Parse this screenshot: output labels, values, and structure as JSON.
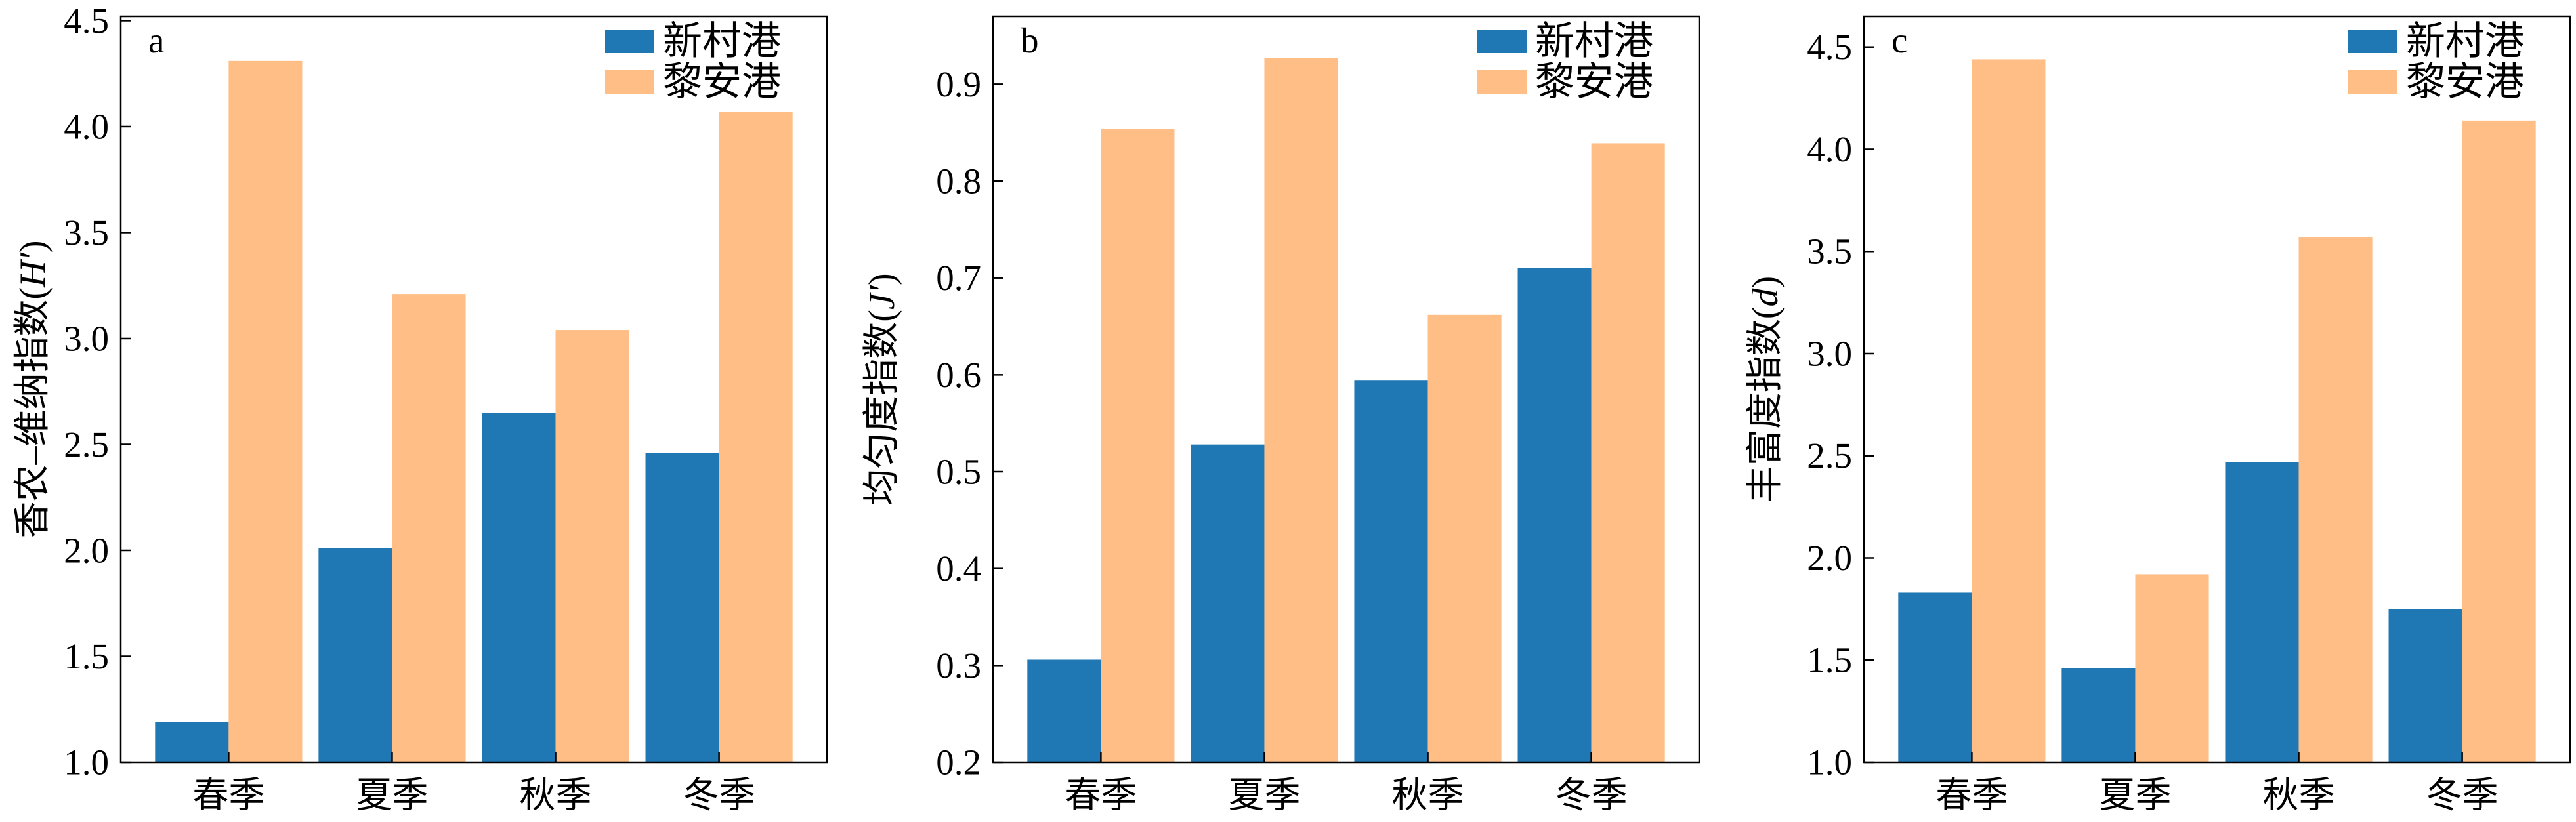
{
  "chart_data": [
    {
      "type": "bar",
      "panel_label": "a",
      "categories": [
        "春季",
        "夏季",
        "秋季",
        "冬季"
      ],
      "series": [
        {
          "name": "新村港",
          "color": "#1f77b4",
          "values": [
            1.19,
            2.01,
            2.65,
            2.46
          ]
        },
        {
          "name": "黎安港",
          "color": "#ffbe86",
          "values": [
            4.31,
            3.21,
            3.04,
            4.07
          ]
        }
      ],
      "ylabel": {
        "text": "香农–维纳指数(",
        "symbol": "H′",
        "suffix": ")"
      },
      "ylim": [
        1.0,
        4.52
      ],
      "yticks": [
        "1.0",
        "1.5",
        "2.0",
        "2.5",
        "3.0",
        "3.5",
        "4.0",
        "4.5"
      ],
      "legend": "top-right",
      "grid": false
    },
    {
      "type": "bar",
      "panel_label": "b",
      "categories": [
        "春季",
        "夏季",
        "秋季",
        "冬季"
      ],
      "series": [
        {
          "name": "新村港",
          "color": "#1f77b4",
          "values": [
            0.306,
            0.528,
            0.594,
            0.71
          ]
        },
        {
          "name": "黎安港",
          "color": "#ffbe86",
          "values": [
            0.854,
            0.927,
            0.662,
            0.839
          ]
        }
      ],
      "ylabel": {
        "text": "均匀度指数(",
        "symbol": "J′",
        "suffix": ")"
      },
      "ylim": [
        0.2,
        0.97
      ],
      "yticks": [
        "0.2",
        "0.3",
        "0.4",
        "0.5",
        "0.6",
        "0.7",
        "0.8",
        "0.9"
      ],
      "legend": "top-right",
      "grid": false
    },
    {
      "type": "bar",
      "panel_label": "c",
      "categories": [
        "春季",
        "夏季",
        "秋季",
        "冬季"
      ],
      "series": [
        {
          "name": "新村港",
          "color": "#1f77b4",
          "values": [
            1.83,
            1.46,
            2.47,
            1.75
          ]
        },
        {
          "name": "黎安港",
          "color": "#ffbe86",
          "values": [
            4.44,
            1.92,
            3.57,
            4.14
          ]
        }
      ],
      "ylabel": {
        "text": "丰富度指数(",
        "symbol": "d",
        "suffix": ")"
      },
      "ylim": [
        1.0,
        4.65
      ],
      "yticks": [
        "1.0",
        "1.5",
        "2.0",
        "2.5",
        "3.0",
        "3.5",
        "4.0",
        "4.5"
      ],
      "legend": "top-right",
      "grid": false
    }
  ]
}
